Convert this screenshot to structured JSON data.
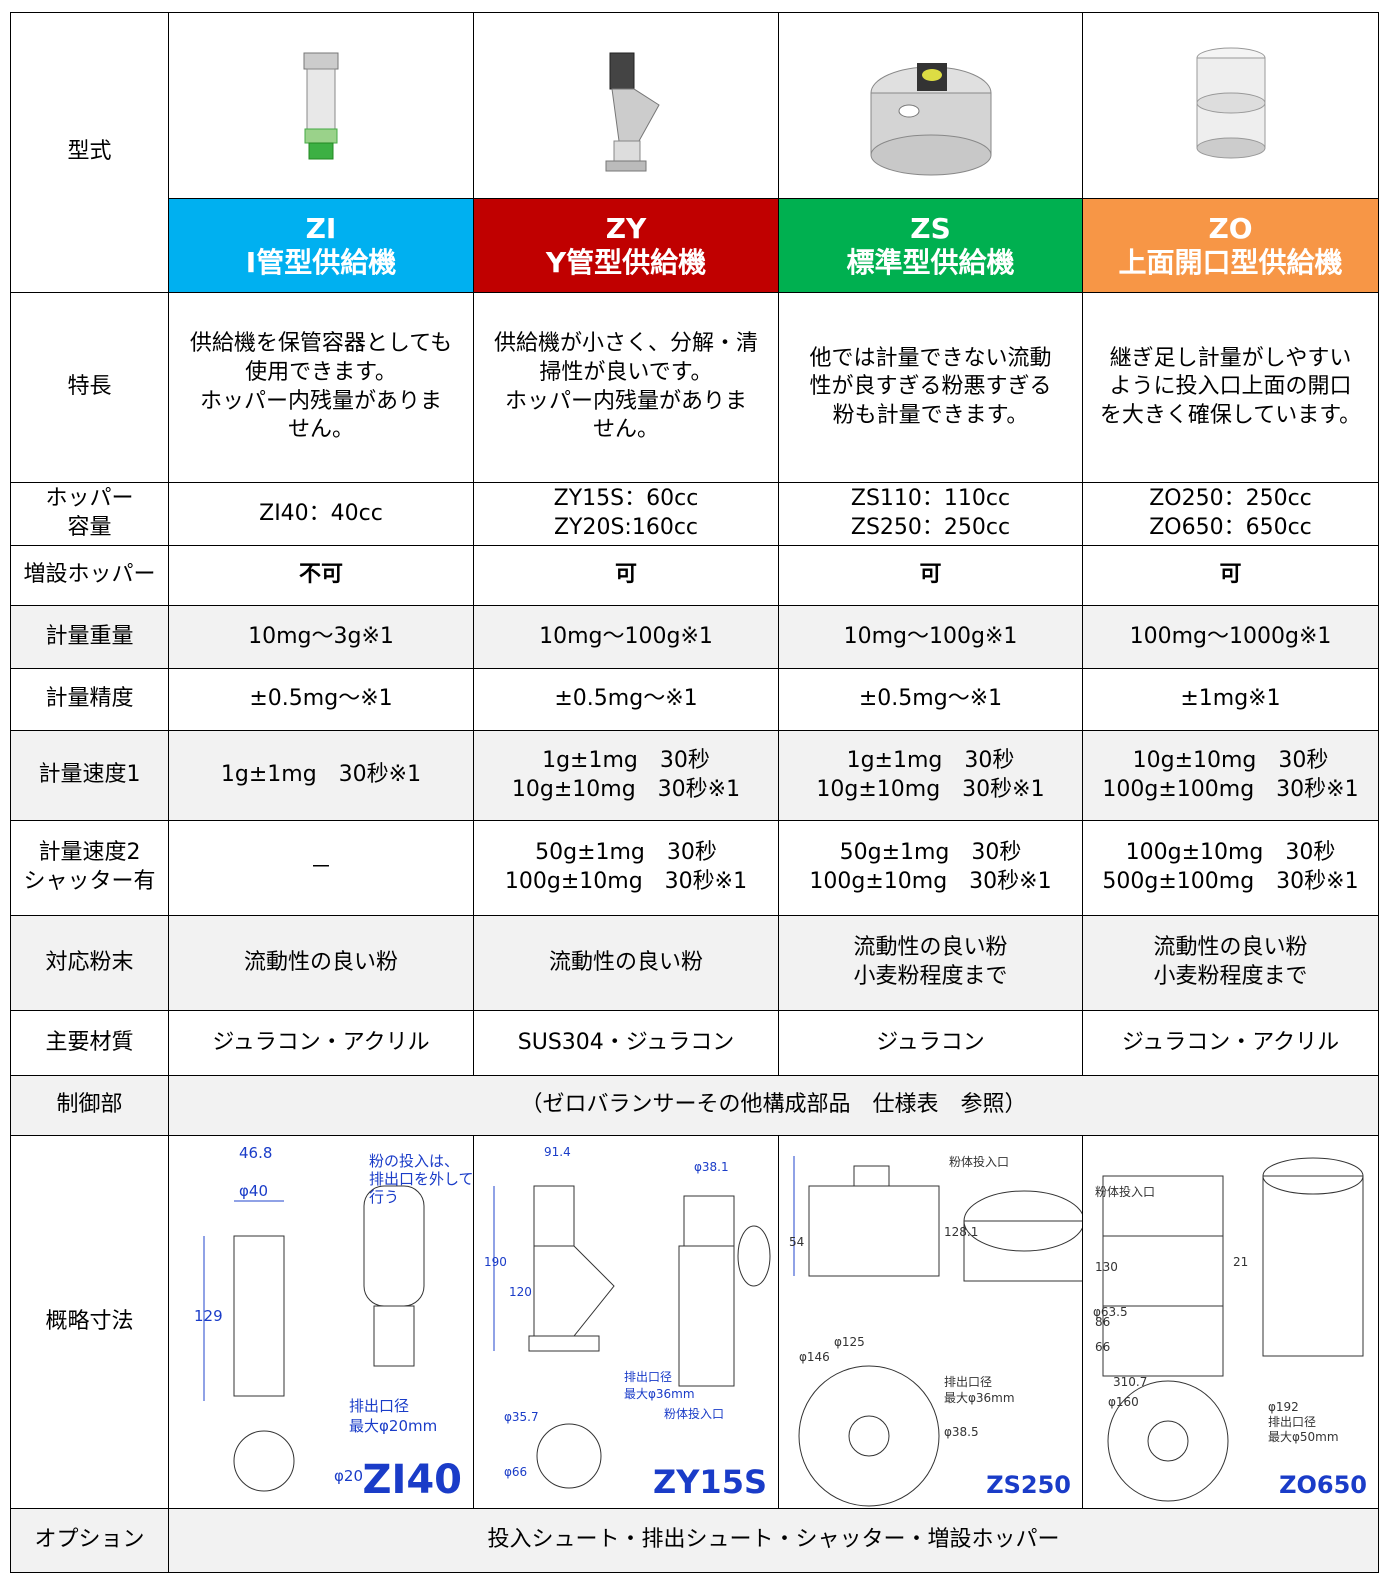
{
  "spec_table": {
    "model_label": "型式",
    "models": [
      {
        "code": "ZI",
        "name": "I管型供給機",
        "color": "#00b0f0"
      },
      {
        "code": "ZY",
        "name": "Y管型供給機",
        "color": "#c00000"
      },
      {
        "code": "ZS",
        "name": "標準型供給機",
        "color": "#00b050"
      },
      {
        "code": "ZO",
        "name": "上面開口型供給機",
        "color": "#f79646"
      }
    ],
    "rows": [
      {
        "label": [
          "特長"
        ],
        "cells": [
          [
            "供給機を保管容器としても",
            "使用できます。",
            "ホッパー内残量がありま",
            "せん。"
          ],
          [
            "供給機が小さく、分解・清",
            "掃性が良いです。",
            "ホッパー内残量がありま",
            "せん。"
          ],
          [
            "他では計量できない流動",
            "性が良すぎる粉悪すぎる",
            "粉も計量できます。"
          ],
          [
            "継ぎ足し計量がしやすい",
            "ように投入口上面の開口",
            "を大きく確保しています。"
          ]
        ]
      },
      {
        "label": [
          "ホッパー",
          "容量"
        ],
        "cells": [
          [
            "ZI40：40cc"
          ],
          [
            "ZY15S：60cc",
            "ZY20S:160cc"
          ],
          [
            "ZS110：110cc",
            "ZS250：250cc"
          ],
          [
            "ZO250：250cc",
            "ZO650：650cc"
          ]
        ]
      },
      {
        "label": [
          "増設ホッパー"
        ],
        "cells": [
          [
            "不可"
          ],
          [
            "可"
          ],
          [
            "可"
          ],
          [
            "可"
          ]
        ]
      },
      {
        "label": [
          "計量重量"
        ],
        "cells": [
          [
            "10mg～3g※1"
          ],
          [
            "10mg～100g※1"
          ],
          [
            "10mg～100g※1"
          ],
          [
            "100mg～1000g※1"
          ]
        ]
      },
      {
        "label": [
          "計量精度"
        ],
        "cells": [
          [
            "±0.5mg～※1"
          ],
          [
            "±0.5mg～※1"
          ],
          [
            "±0.5mg～※1"
          ],
          [
            "±1mg※1"
          ]
        ]
      },
      {
        "label": [
          "計量速度1"
        ],
        "cells": [
          [
            "1g±1mg　30秒※1"
          ],
          [
            "1g±1mg　30秒",
            "10g±10mg　30秒※1"
          ],
          [
            "1g±1mg　30秒",
            "10g±10mg　30秒※1"
          ],
          [
            "10g±10mg　30秒",
            "100g±100mg　30秒※1"
          ]
        ]
      },
      {
        "label": [
          "計量速度2",
          "シャッター有"
        ],
        "cells": [
          [
            "－"
          ],
          [
            "50g±1mg　30秒",
            "100g±10mg　30秒※1"
          ],
          [
            "50g±1mg　30秒",
            "100g±10mg　30秒※1"
          ],
          [
            "100g±10mg　30秒",
            "500g±100mg　30秒※1"
          ]
        ]
      },
      {
        "label": [
          "対応粉末"
        ],
        "cells": [
          [
            "流動性の良い粉"
          ],
          [
            "流動性の良い粉"
          ],
          [
            "流動性の良い粉",
            "小麦粉程度まで"
          ],
          [
            "流動性の良い粉",
            "小麦粉程度まで"
          ]
        ]
      },
      {
        "label": [
          "主要材質"
        ],
        "cells": [
          [
            "ジュラコン・アクリル"
          ],
          [
            "SUS304・ジュラコン"
          ],
          [
            "ジュラコン"
          ],
          [
            "ジュラコン・アクリル"
          ]
        ]
      }
    ],
    "control": {
      "label": "制御部",
      "text": "（ゼロバランサーその他構成部品　仕様表　参照）"
    },
    "dimensions": {
      "label": "概略寸法",
      "drawings": [
        {
          "model": "ZI40",
          "notes": [
            "46.8",
            "φ40",
            "粉の投入は、",
            "排出口を外して",
            "行う",
            "129",
            "排出口径",
            "最大φ20mm",
            "φ20"
          ]
        },
        {
          "model": "ZY15S",
          "notes": [
            "91.4",
            "φ38.1",
            "190",
            "120",
            "排出口径",
            "最大φ36mm",
            "粉体投入口",
            "φ35.7",
            "φ66"
          ]
        },
        {
          "model": "ZS250",
          "notes": [
            "粉体投入口",
            "54",
            "128.1",
            "φ125",
            "φ146",
            "排出口径",
            "最大φ36mm",
            "φ38.5"
          ]
        },
        {
          "model": "ZO650",
          "notes": [
            "粉体投入口",
            "130",
            "86",
            "66",
            "21",
            "310.7",
            "φ160",
            "φ192",
            "排出口径",
            "最大φ50mm",
            "φ63.5"
          ]
        }
      ]
    },
    "options": {
      "label": "オプション",
      "text": "投入シュート・排出シュート・シャッター・増設ホッパー"
    }
  }
}
